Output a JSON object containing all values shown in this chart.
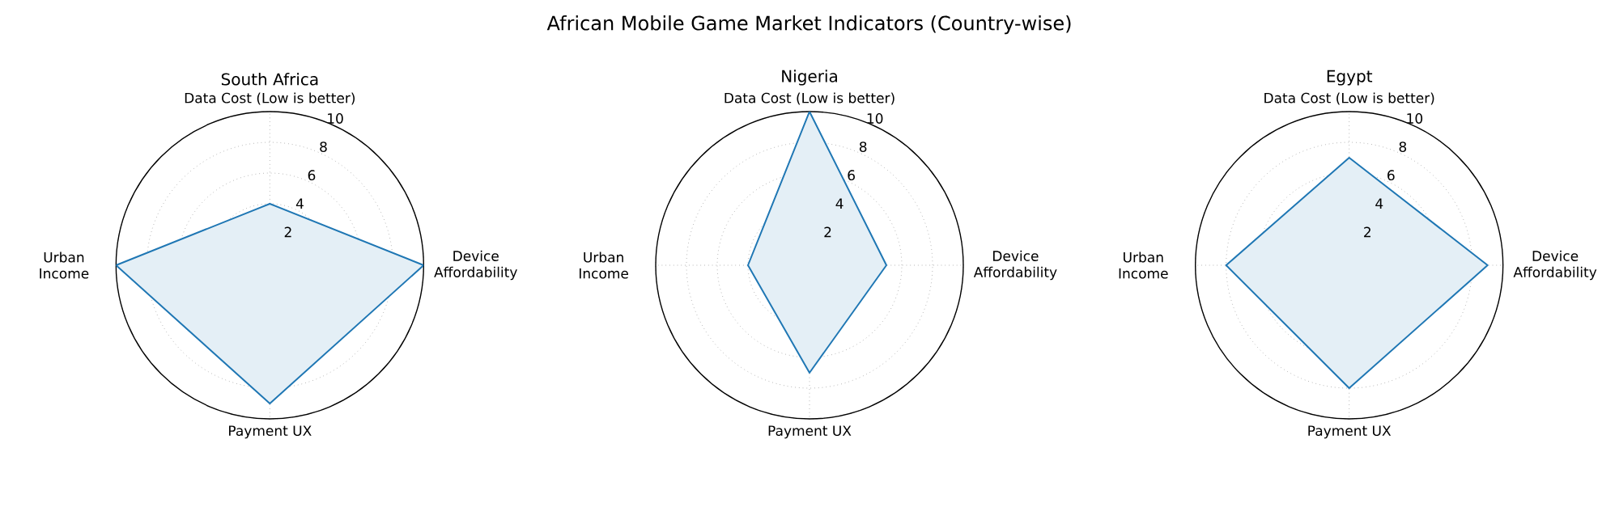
{
  "chart_data": [
    {
      "type": "radar",
      "title": "South Africa",
      "annotations": [
        "African Mobile Game Market Indicators (Country-wise)"
      ],
      "categories": [
        "Data Cost (Low is better)",
        "Device Affordability",
        "Payment UX",
        "Urban Income"
      ],
      "series": [
        {
          "color": "#1f77b4",
          "values": [
            4,
            10,
            9,
            10
          ]
        }
      ],
      "ylim": [
        0,
        10
      ],
      "yticks": [
        2,
        4,
        6,
        8,
        10
      ],
      "grid": true
    },
    {
      "type": "radar",
      "title": "Nigeria",
      "categories": [
        "Data Cost (Low is better)",
        "Device Affordability",
        "Payment UX",
        "Urban Income"
      ],
      "series": [
        {
          "color": "#1f77b4",
          "values": [
            10,
            5,
            7,
            4
          ]
        }
      ],
      "ylim": [
        0,
        10
      ],
      "yticks": [
        2,
        4,
        6,
        8,
        10
      ],
      "grid": true
    },
    {
      "type": "radar",
      "title": "Egypt",
      "categories": [
        "Data Cost (Low is better)",
        "Device Affordability",
        "Payment UX",
        "Urban Income"
      ],
      "series": [
        {
          "color": "#1f77b4",
          "values": [
            7,
            9,
            8,
            8
          ]
        }
      ],
      "ylim": [
        0,
        10
      ],
      "yticks": [
        2,
        4,
        6,
        8,
        10
      ],
      "grid": true
    }
  ]
}
